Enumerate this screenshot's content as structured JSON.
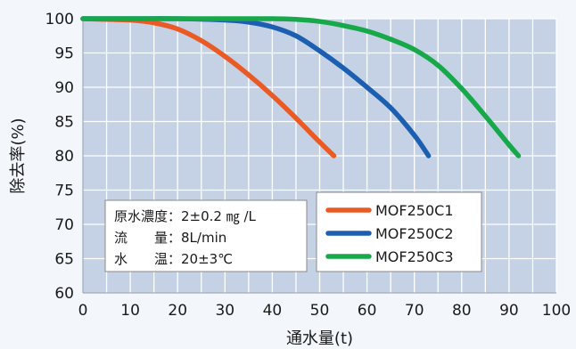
{
  "chart_data": {
    "type": "line",
    "xlabel": "通水量(t)",
    "ylabel": "除去率(%)",
    "xlim": [
      0,
      100
    ],
    "ylim": [
      60,
      100
    ],
    "x_ticks": [
      0,
      10,
      20,
      30,
      40,
      50,
      60,
      70,
      80,
      90,
      100
    ],
    "y_ticks": [
      60,
      65,
      70,
      75,
      80,
      85,
      90,
      95,
      100
    ],
    "x_tick_labels": [
      "0",
      "10",
      "20",
      "30",
      "40",
      "50",
      "60",
      "70",
      "80",
      "90",
      "100"
    ],
    "y_tick_labels": [
      "60",
      "65",
      "70",
      "75",
      "80",
      "85",
      "90",
      "95",
      "100"
    ],
    "grid": true,
    "legend_position": "bottom-center",
    "series": [
      {
        "name": "MOF250C1",
        "color": "#ea5a24",
        "x": [
          0,
          5,
          10,
          15,
          20,
          25,
          30,
          35,
          40,
          45,
          50,
          53
        ],
        "y": [
          100,
          99.9,
          99.8,
          99.4,
          98.5,
          96.8,
          94.5,
          91.8,
          88.8,
          85.5,
          82.0,
          80.0
        ]
      },
      {
        "name": "MOF250C2",
        "color": "#1c5fb0",
        "x": [
          0,
          10,
          20,
          30,
          35,
          40,
          45,
          50,
          55,
          60,
          65,
          70,
          73
        ],
        "y": [
          100,
          100,
          100,
          99.8,
          99.5,
          98.8,
          97.5,
          95.3,
          92.8,
          90.0,
          87.0,
          83.0,
          80.0
        ]
      },
      {
        "name": "MOF250C3",
        "color": "#17a84a",
        "x": [
          0,
          10,
          20,
          30,
          40,
          45,
          50,
          55,
          60,
          65,
          70,
          75,
          80,
          85,
          90,
          92
        ],
        "y": [
          100,
          100,
          100,
          100,
          100,
          99.9,
          99.6,
          99.0,
          98.2,
          97.0,
          95.5,
          93.2,
          89.8,
          85.8,
          81.6,
          80.0
        ]
      }
    ]
  },
  "conditions": {
    "lines": [
      "原水濃度：2±0.2 ㎎ /L",
      "流　　量：8L/min",
      "水　　温：20±3℃"
    ]
  }
}
